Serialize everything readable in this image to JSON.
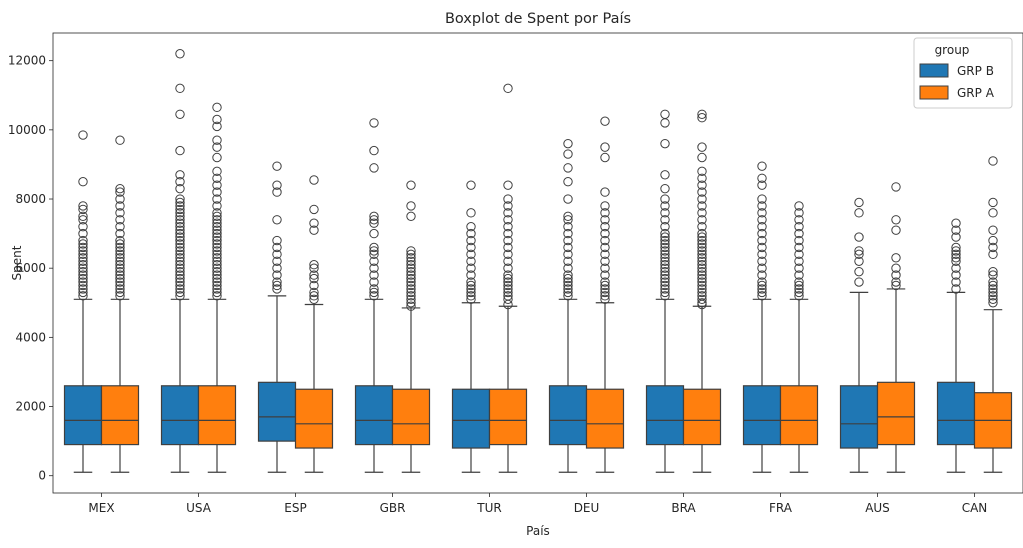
{
  "chart_data": {
    "type": "boxplot",
    "title": "Boxplot de Spent por País",
    "xlabel": "País",
    "ylabel": "Spent",
    "ylim": [
      -500,
      12800
    ],
    "yticks": [
      0,
      2000,
      4000,
      6000,
      8000,
      10000,
      12000
    ],
    "ytick_labels": [
      "0",
      "2000",
      "4000",
      "6000",
      "8000",
      "10000",
      "12000"
    ],
    "categories": [
      "MEX",
      "USA",
      "ESP",
      "GBR",
      "TUR",
      "DEU",
      "BRA",
      "FRA",
      "AUS",
      "CAN"
    ],
    "legend": {
      "title": "group",
      "position": "top-right"
    },
    "grid": false,
    "series": [
      {
        "name": "GRP B",
        "color": "#1f77b4",
        "boxes": [
          {
            "min": 100,
            "q1": 900,
            "median": 1600,
            "q3": 2600,
            "max": 5100,
            "outliers": [
              5200,
              5300,
              5400,
              5500,
              5600,
              5700,
              5800,
              5900,
              6000,
              6100,
              6200,
              6300,
              6400,
              6500,
              6600,
              6700,
              6800,
              7000,
              7200,
              7400,
              7500,
              7700,
              7800,
              8500,
              9850
            ]
          },
          {
            "min": 100,
            "q1": 900,
            "median": 1600,
            "q3": 2600,
            "max": 5100,
            "outliers": [
              5200,
              5300,
              5400,
              5500,
              5600,
              5700,
              5800,
              5900,
              6000,
              6100,
              6200,
              6300,
              6400,
              6500,
              6600,
              6700,
              6800,
              6900,
              7000,
              7100,
              7200,
              7300,
              7400,
              7500,
              7600,
              7700,
              7800,
              7900,
              8000,
              8300,
              8500,
              8700,
              9400,
              10450,
              11200,
              12200
            ]
          },
          {
            "min": 100,
            "q1": 1000,
            "median": 1700,
            "q3": 2700,
            "max": 5200,
            "outliers": [
              5400,
              5500,
              5600,
              5800,
              6000,
              6200,
              6400,
              6600,
              6800,
              7400,
              8200,
              8400,
              8950
            ]
          },
          {
            "min": 100,
            "q1": 900,
            "median": 1600,
            "q3": 2600,
            "max": 5100,
            "outliers": [
              5200,
              5300,
              5400,
              5600,
              5800,
              6000,
              6200,
              6400,
              6500,
              6600,
              7000,
              7300,
              7400,
              7500,
              8900,
              9400,
              10200
            ]
          },
          {
            "min": 100,
            "q1": 800,
            "median": 1600,
            "q3": 2500,
            "max": 5000,
            "outliers": [
              5100,
              5200,
              5300,
              5400,
              5500,
              5600,
              5800,
              6000,
              6200,
              6400,
              6600,
              6800,
              7000,
              7200,
              7600,
              8400
            ]
          },
          {
            "min": 100,
            "q1": 900,
            "median": 1600,
            "q3": 2600,
            "max": 5100,
            "outliers": [
              5200,
              5300,
              5400,
              5500,
              5600,
              5700,
              5800,
              6000,
              6200,
              6400,
              6600,
              6800,
              7000,
              7200,
              7400,
              7500,
              8000,
              8500,
              8900,
              9300,
              9600
            ]
          },
          {
            "min": 100,
            "q1": 900,
            "median": 1600,
            "q3": 2600,
            "max": 5100,
            "outliers": [
              5200,
              5300,
              5400,
              5500,
              5600,
              5700,
              5800,
              5900,
              6000,
              6100,
              6200,
              6300,
              6400,
              6500,
              6600,
              6700,
              6800,
              6900,
              7000,
              7200,
              7400,
              7600,
              7800,
              8000,
              8300,
              8700,
              9600,
              10200,
              10450
            ]
          },
          {
            "min": 100,
            "q1": 900,
            "median": 1600,
            "q3": 2600,
            "max": 5100,
            "outliers": [
              5200,
              5300,
              5400,
              5500,
              5600,
              5800,
              6000,
              6200,
              6400,
              6600,
              6800,
              7000,
              7200,
              7400,
              7600,
              7800,
              8000,
              8400,
              8600,
              8950
            ]
          },
          {
            "min": 100,
            "q1": 800,
            "median": 1500,
            "q3": 2600,
            "max": 5300,
            "outliers": [
              5600,
              5900,
              6200,
              6400,
              6500,
              6900,
              7600,
              7900
            ]
          },
          {
            "min": 100,
            "q1": 900,
            "median": 1600,
            "q3": 2700,
            "max": 5300,
            "outliers": [
              5400,
              5600,
              5800,
              6000,
              6200,
              6300,
              6400,
              6500,
              6600,
              6900,
              7100,
              7300
            ]
          }
        ]
      },
      {
        "name": "GRP A",
        "color": "#ff7f0e",
        "boxes": [
          {
            "min": 100,
            "q1": 900,
            "median": 1600,
            "q3": 2600,
            "max": 5100,
            "outliers": [
              5200,
              5300,
              5400,
              5500,
              5600,
              5700,
              5800,
              5900,
              6000,
              6100,
              6200,
              6300,
              6400,
              6500,
              6600,
              6700,
              6800,
              7000,
              7200,
              7400,
              7600,
              7800,
              8000,
              8200,
              8300,
              9700
            ]
          },
          {
            "min": 100,
            "q1": 900,
            "median": 1600,
            "q3": 2600,
            "max": 5100,
            "outliers": [
              5200,
              5300,
              5400,
              5500,
              5600,
              5700,
              5800,
              5900,
              6000,
              6100,
              6200,
              6300,
              6400,
              6500,
              6600,
              6700,
              6800,
              6900,
              7000,
              7100,
              7200,
              7300,
              7400,
              7500,
              7600,
              7800,
              8000,
              8200,
              8400,
              8600,
              8800,
              9200,
              9500,
              9700,
              10100,
              10300,
              10650
            ]
          },
          {
            "min": 100,
            "q1": 800,
            "median": 1500,
            "q3": 2500,
            "max": 4950,
            "outliers": [
              5100,
              5200,
              5300,
              5500,
              5700,
              5800,
              6000,
              6100,
              7100,
              7300,
              7700,
              8550
            ]
          },
          {
            "min": 100,
            "q1": 900,
            "median": 1500,
            "q3": 2500,
            "max": 4850,
            "outliers": [
              4900,
              5000,
              5100,
              5200,
              5300,
              5400,
              5500,
              5600,
              5700,
              5800,
              5900,
              6000,
              6100,
              6200,
              6300,
              6400,
              6500,
              7500,
              7800,
              8400
            ]
          },
          {
            "min": 100,
            "q1": 900,
            "median": 1600,
            "q3": 2500,
            "max": 4900,
            "outliers": [
              4950,
              5100,
              5200,
              5300,
              5400,
              5500,
              5600,
              5700,
              5800,
              6000,
              6200,
              6400,
              6600,
              6800,
              7000,
              7200,
              7400,
              7600,
              7800,
              8000,
              8400,
              11200
            ]
          },
          {
            "min": 100,
            "q1": 800,
            "median": 1500,
            "q3": 2500,
            "max": 5000,
            "outliers": [
              5100,
              5200,
              5300,
              5400,
              5500,
              5600,
              5800,
              6000,
              6200,
              6400,
              6600,
              6800,
              7000,
              7200,
              7400,
              7600,
              7800,
              8200,
              9200,
              9500,
              10250
            ]
          },
          {
            "min": 100,
            "q1": 900,
            "median": 1600,
            "q3": 2500,
            "max": 4900,
            "outliers": [
              4950,
              5000,
              5100,
              5200,
              5300,
              5400,
              5500,
              5600,
              5700,
              5800,
              5900,
              6000,
              6100,
              6200,
              6300,
              6400,
              6500,
              6600,
              6700,
              6800,
              6900,
              7000,
              7200,
              7400,
              7600,
              7800,
              8000,
              8200,
              8400,
              8600,
              8800,
              9200,
              9500,
              10350,
              10450
            ]
          },
          {
            "min": 100,
            "q1": 900,
            "median": 1600,
            "q3": 2600,
            "max": 5100,
            "outliers": [
              5200,
              5300,
              5400,
              5500,
              5600,
              5800,
              6000,
              6200,
              6400,
              6600,
              6800,
              7000,
              7200,
              7400,
              7600,
              7800
            ]
          },
          {
            "min": 100,
            "q1": 900,
            "median": 1700,
            "q3": 2700,
            "max": 5400,
            "outliers": [
              5500,
              5600,
              5800,
              6000,
              6300,
              7100,
              7400,
              8350
            ]
          },
          {
            "min": 100,
            "q1": 800,
            "median": 1600,
            "q3": 2400,
            "max": 4800,
            "outliers": [
              5000,
              5100,
              5200,
              5300,
              5400,
              5500,
              5600,
              5800,
              5900,
              6400,
              6600,
              6800,
              7100,
              7600,
              7900,
              9100
            ]
          }
        ]
      }
    ]
  }
}
